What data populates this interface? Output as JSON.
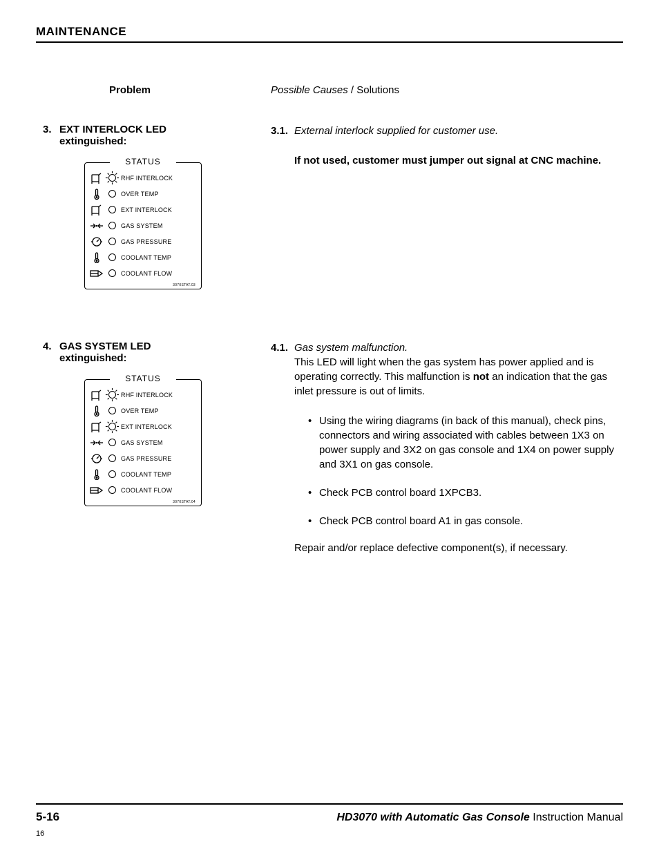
{
  "section_title": "MAINTENANCE",
  "header": {
    "problem_label": "Problem",
    "causes_italic": "Possible Causes",
    "causes_plain": " / Solutions"
  },
  "problems": [
    {
      "num": "3.",
      "title_line1": "EXT INTERLOCK LED",
      "title_line2": "extinguished:",
      "panel": {
        "title": "STATUS",
        "rows": [
          {
            "icon": "switch",
            "lit": true,
            "label": "RHF INTERLOCK"
          },
          {
            "icon": "thermo",
            "lit": false,
            "label": "OVER TEMP"
          },
          {
            "icon": "switch",
            "lit": false,
            "label": "EXT INTERLOCK"
          },
          {
            "icon": "arrows",
            "lit": false,
            "label": "GAS SYSTEM"
          },
          {
            "icon": "gauge",
            "lit": false,
            "label": "GAS PRESSURE"
          },
          {
            "icon": "thermo",
            "lit": false,
            "label": "COOLANT TEMP"
          },
          {
            "icon": "flow",
            "lit": false,
            "label": "COOLANT FLOW"
          }
        ],
        "micro": "3070STAT.03"
      },
      "causes": [
        {
          "num": "3.1.",
          "italic": "External interlock supplied for customer use.",
          "followup_bold": "If not used, customer must jumper out signal at CNC machine."
        }
      ]
    },
    {
      "num": "4.",
      "title_line1": "GAS SYSTEM LED",
      "title_line2": "extinguished:",
      "panel": {
        "title": "STATUS",
        "rows": [
          {
            "icon": "switch",
            "lit": true,
            "label": "RHF INTERLOCK"
          },
          {
            "icon": "thermo",
            "lit": false,
            "label": "OVER TEMP"
          },
          {
            "icon": "switch",
            "lit": true,
            "label": "EXT INTERLOCK"
          },
          {
            "icon": "arrows",
            "lit": false,
            "label": "GAS SYSTEM"
          },
          {
            "icon": "gauge",
            "lit": false,
            "label": "GAS PRESSURE"
          },
          {
            "icon": "thermo",
            "lit": false,
            "label": "COOLANT TEMP"
          },
          {
            "icon": "flow",
            "lit": false,
            "label": "COOLANT FLOW"
          }
        ],
        "micro": "3070STAT.04"
      },
      "causes": [
        {
          "num": "4.1.",
          "italic": "Gas system malfunction.",
          "body_pre": "This LED will light when the gas system has power applied and is operating correctly. This malfunction is ",
          "body_bold": "not",
          "body_post": " an indication that the gas inlet pressure is out of limits.",
          "bullets": [
            "Using the wiring diagrams (in back of this manual), check pins, connectors and wiring associated with cables between 1X3 on power supply and 3X2 on gas console and 1X4 on power supply and 3X1 on gas console.",
            "Check PCB control board 1XPCB3.",
            "Check PCB control board A1 in gas console."
          ],
          "repair": "Repair and/or replace defective component(s), if necessary."
        }
      ]
    }
  ],
  "footer": {
    "page_num": "5-16",
    "product": "HD3070 with Automatic Gas Console",
    "manual": "  Instruction Manual",
    "tiny": "16"
  }
}
